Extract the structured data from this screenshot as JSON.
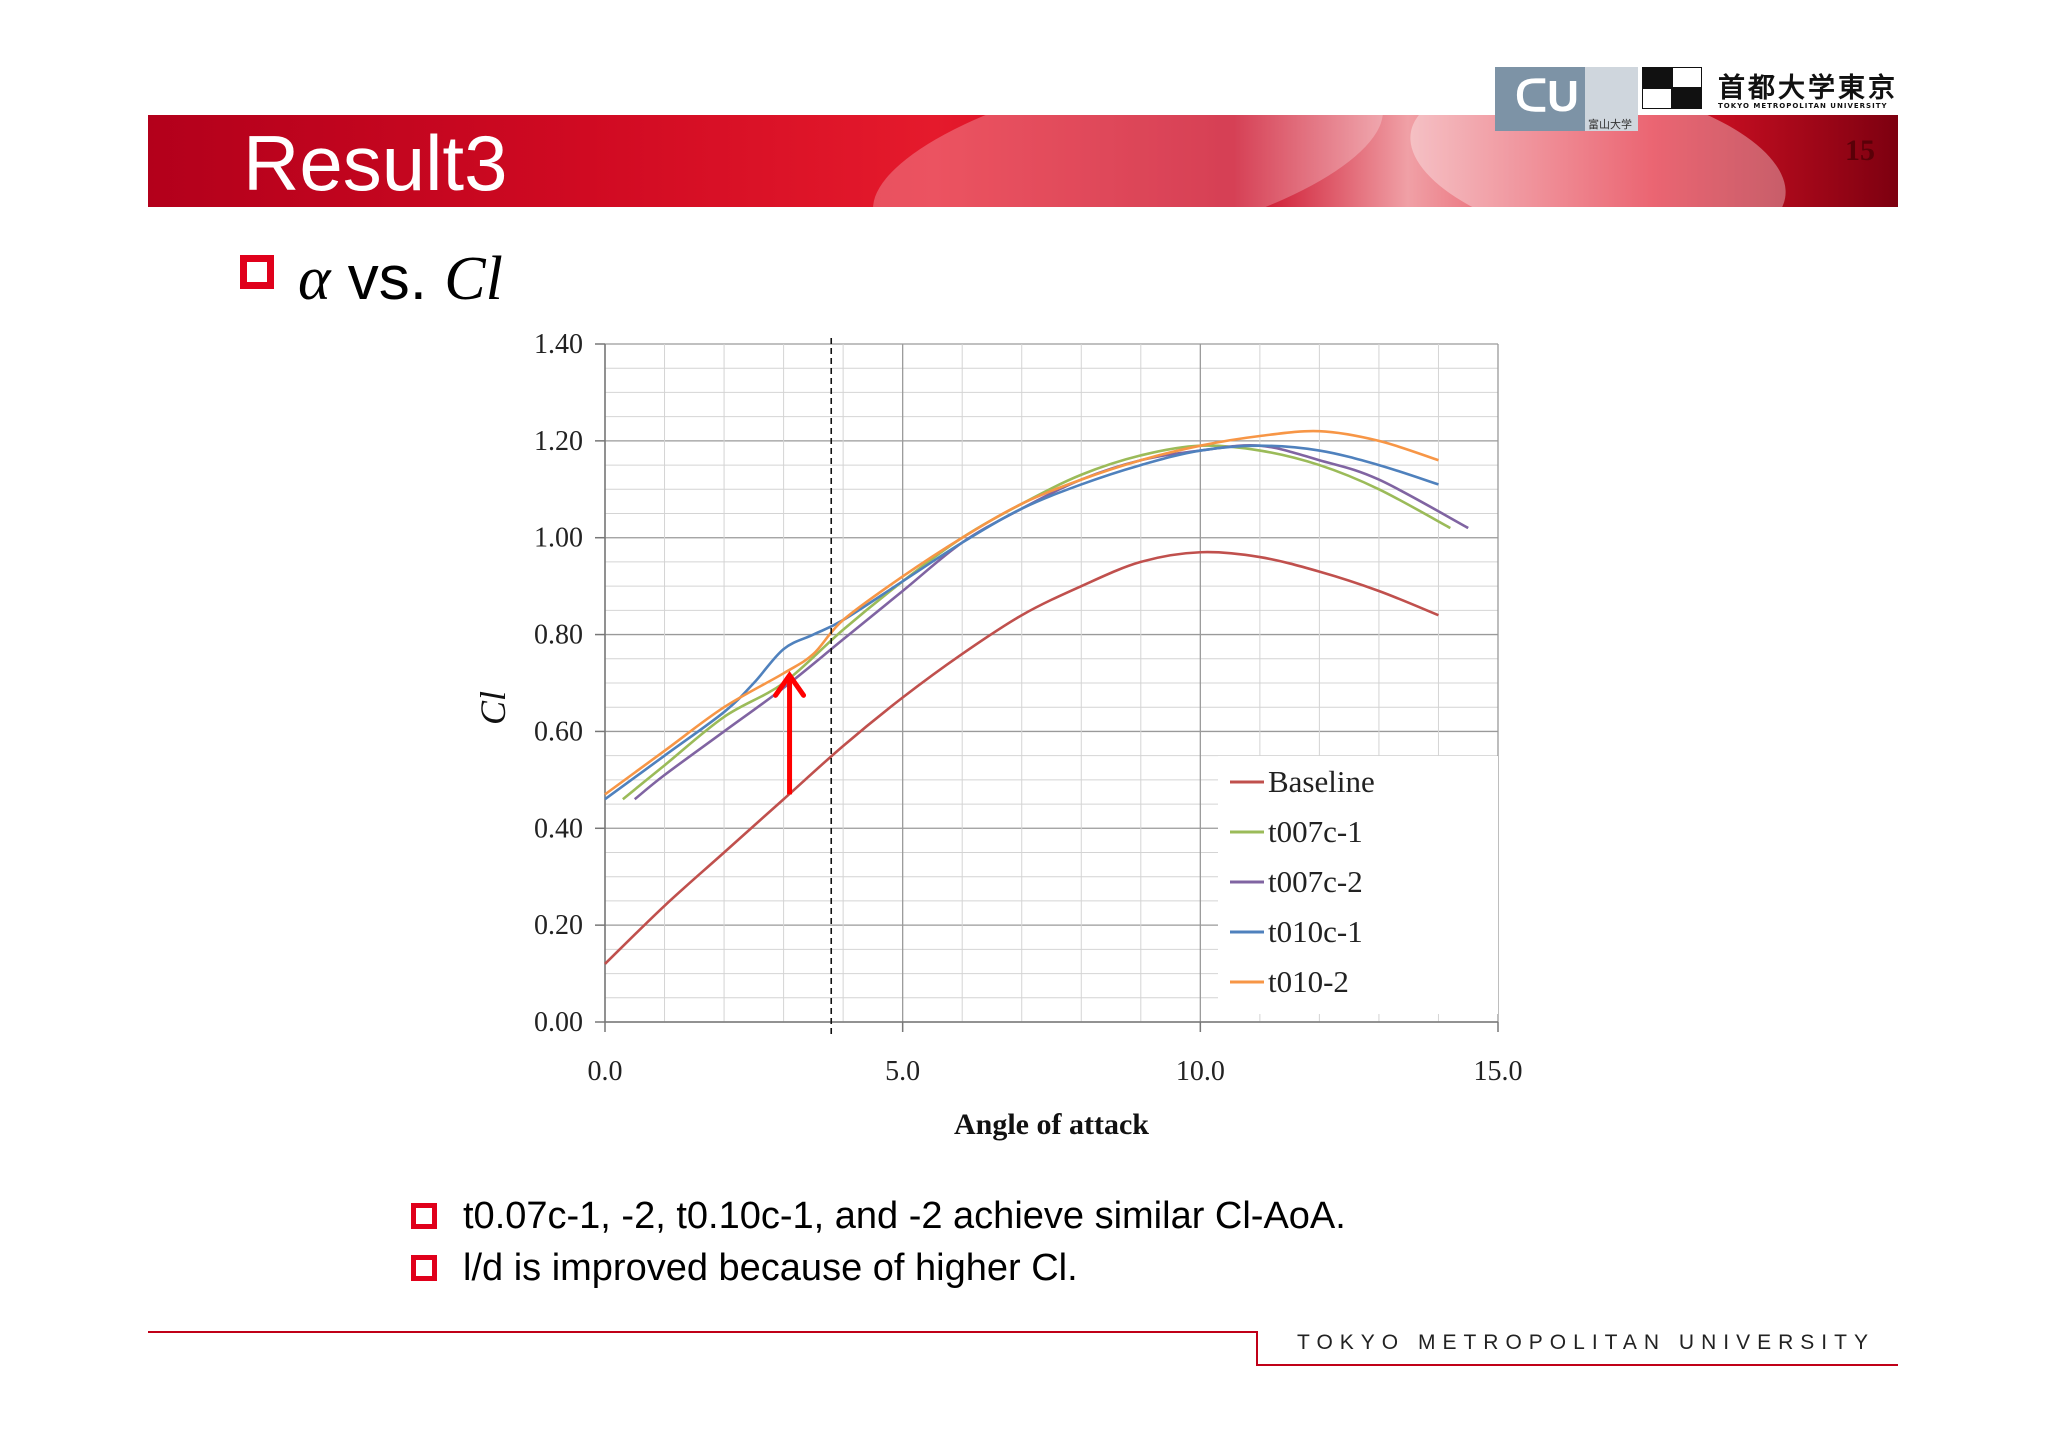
{
  "header": {
    "title": "Result3",
    "slide_number": "15",
    "university_jp": "首都大学東京",
    "university_en": "TOKYO METROPOLITAN UNIVERSITY",
    "partner_logo_text": "富山大学",
    "partner_logo_small": "UNIVERSITY OF TOYAMA"
  },
  "heading": {
    "alpha": "α",
    "vs": " vs. ",
    "cl": "Cl"
  },
  "chart_data": {
    "type": "line",
    "xlabel": "Angle of attack",
    "ylabel": "Cl",
    "xlim": [
      0,
      15
    ],
    "ylim": [
      0,
      1.4
    ],
    "x_ticks": [
      "0.0",
      "5.0",
      "10.0",
      "15.0"
    ],
    "y_ticks": [
      "0.00",
      "0.20",
      "0.40",
      "0.60",
      "0.80",
      "1.00",
      "1.20",
      "1.40"
    ],
    "grid": true,
    "legend_position": "bottom-right",
    "dashed_vline_x": 3.8,
    "arrow": {
      "x": 3.1,
      "y_from": 0.47,
      "y_to": 0.72
    },
    "colors": {
      "Baseline": "#c0504d",
      "t007c-1": "#9bbb59",
      "t007c-2": "#8064a2",
      "t010c-1": "#4f81bd",
      "t010-2": "#f79646",
      "arrow": "#ff0000"
    },
    "series": [
      {
        "name": "Baseline",
        "x": [
          0,
          1,
          2,
          3,
          4,
          5,
          6,
          7,
          8,
          9,
          10,
          11,
          12,
          13,
          14
        ],
        "values": [
          0.12,
          0.24,
          0.35,
          0.46,
          0.57,
          0.67,
          0.76,
          0.84,
          0.9,
          0.95,
          0.97,
          0.96,
          0.93,
          0.89,
          0.84
        ]
      },
      {
        "name": "t007c-1",
        "x": [
          0.3,
          1,
          2,
          3,
          4,
          5,
          6,
          7,
          8,
          9,
          10,
          11,
          12,
          13,
          14.2
        ],
        "values": [
          0.46,
          0.53,
          0.63,
          0.7,
          0.81,
          0.91,
          1.0,
          1.07,
          1.13,
          1.17,
          1.19,
          1.18,
          1.15,
          1.1,
          1.02
        ]
      },
      {
        "name": "t007c-2",
        "x": [
          0.5,
          1,
          2,
          3,
          4,
          5,
          6,
          7,
          8,
          9,
          10,
          11,
          12,
          13,
          14.5
        ],
        "values": [
          0.46,
          0.51,
          0.6,
          0.69,
          0.79,
          0.89,
          0.99,
          1.06,
          1.12,
          1.16,
          1.18,
          1.19,
          1.16,
          1.12,
          1.02
        ]
      },
      {
        "name": "t010c-1",
        "x": [
          0,
          1,
          2,
          2.5,
          3,
          3.5,
          4,
          5,
          6,
          7,
          8,
          9,
          10,
          11,
          12,
          13,
          14
        ],
        "values": [
          0.46,
          0.55,
          0.64,
          0.7,
          0.77,
          0.8,
          0.83,
          0.91,
          0.99,
          1.06,
          1.11,
          1.15,
          1.18,
          1.19,
          1.18,
          1.15,
          1.11
        ]
      },
      {
        "name": "t010-2",
        "x": [
          0,
          1,
          2,
          3,
          3.5,
          4,
          5,
          6,
          7,
          8,
          9,
          10,
          11,
          12,
          13,
          14
        ],
        "values": [
          0.47,
          0.56,
          0.65,
          0.72,
          0.76,
          0.83,
          0.92,
          1.0,
          1.07,
          1.12,
          1.16,
          1.19,
          1.21,
          1.22,
          1.2,
          1.16
        ]
      }
    ]
  },
  "notes": [
    "t0.07c-1, -2, t0.10c-1, and -2 achieve similar Cl-AoA.",
    "l/d is improved because of higher Cl."
  ],
  "footer": {
    "text": "TOKYO METROPOLITAN UNIVERSITY"
  }
}
